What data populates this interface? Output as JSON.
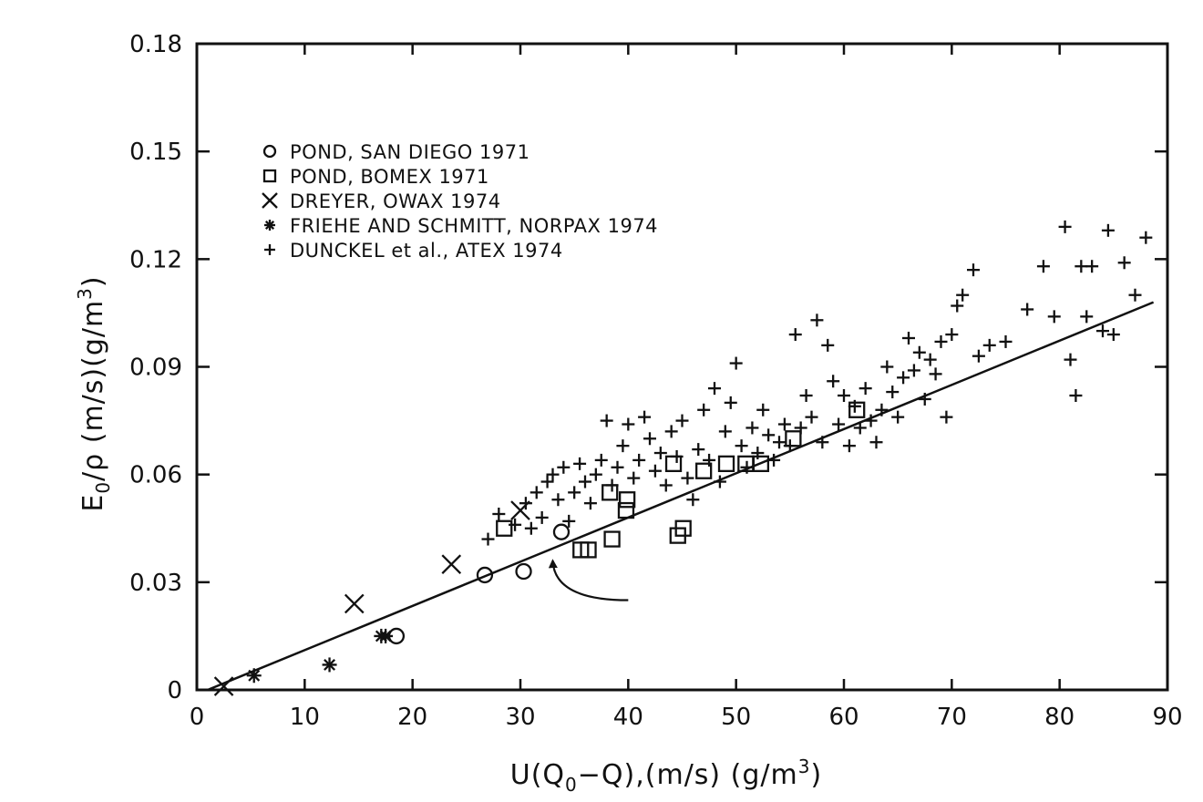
{
  "chart_data": {
    "type": "scatter",
    "x_label_parts": {
      "a": "U(Q",
      "a_sub": "0",
      "b": "−Q),(m/s) (g/m",
      "b_sup": "3",
      "c": ")"
    },
    "y_label_parts": {
      "a": "E",
      "a_sub": "0",
      "b": "/ρ (m/s)(g/m",
      "b_sup": "3",
      "c": ")"
    },
    "xlim": [
      0,
      90
    ],
    "ylim": [
      0,
      0.18
    ],
    "xticks": [
      0,
      10,
      20,
      30,
      40,
      50,
      60,
      70,
      80,
      90
    ],
    "yticks": [
      0,
      0.03,
      0.06,
      0.09,
      0.12,
      0.15,
      0.18
    ],
    "xtick_labels": [
      "0",
      "10",
      "20",
      "30",
      "40",
      "50",
      "60",
      "70",
      "80",
      "90"
    ],
    "ytick_labels": [
      "0",
      "0.03",
      "0.06",
      "0.09",
      "0.12",
      "0.15",
      "0.18"
    ],
    "grid": false,
    "legend_position": "top-left",
    "fit_line": {
      "x": [
        1,
        88.7
      ],
      "y": [
        0,
        0.108
      ]
    },
    "annotation_arrow": {
      "from": [
        40,
        0.025
      ],
      "to": [
        33,
        0.036
      ]
    },
    "series": [
      {
        "name": "POND, SAN DIEGO 1971",
        "marker": "circle",
        "points": [
          [
            18.5,
            0.015
          ],
          [
            26.7,
            0.032
          ],
          [
            30.3,
            0.033
          ],
          [
            33.8,
            0.044
          ]
        ]
      },
      {
        "name": "POND, BOMEX 1971",
        "marker": "square",
        "points": [
          [
            28.5,
            0.045
          ],
          [
            35.6,
            0.039
          ],
          [
            36.3,
            0.039
          ],
          [
            38.5,
            0.042
          ],
          [
            38.3,
            0.055
          ],
          [
            39.8,
            0.05
          ],
          [
            39.9,
            0.053
          ],
          [
            44.2,
            0.063
          ],
          [
            44.6,
            0.043
          ],
          [
            45.1,
            0.045
          ],
          [
            47,
            0.061
          ],
          [
            49.1,
            0.063
          ],
          [
            50.9,
            0.063
          ],
          [
            52.3,
            0.063
          ],
          [
            55.3,
            0.07
          ],
          [
            61.2,
            0.078
          ]
        ]
      },
      {
        "name": "DREYER, OWAX 1974",
        "marker": "x",
        "points": [
          [
            2.5,
            0.001
          ],
          [
            14.6,
            0.024
          ],
          [
            23.6,
            0.035
          ],
          [
            30,
            0.05
          ]
        ]
      },
      {
        "name": "FRIEHE AND SCHMITT, NORPAX 1974",
        "marker": "asterisk",
        "points": [
          [
            5.3,
            0.004
          ],
          [
            12.3,
            0.007
          ],
          [
            17.1,
            0.015
          ],
          [
            17.5,
            0.015
          ]
        ]
      },
      {
        "name": "DUNCKEL et al., ATEX 1974",
        "marker": "plus",
        "points": [
          [
            27,
            0.042
          ],
          [
            28,
            0.049
          ],
          [
            29.5,
            0.046
          ],
          [
            30.5,
            0.052
          ],
          [
            31,
            0.045
          ],
          [
            31.5,
            0.055
          ],
          [
            32,
            0.048
          ],
          [
            32.5,
            0.058
          ],
          [
            33,
            0.06
          ],
          [
            33.5,
            0.053
          ],
          [
            34,
            0.062
          ],
          [
            34.5,
            0.047
          ],
          [
            35,
            0.055
          ],
          [
            35.5,
            0.063
          ],
          [
            36,
            0.058
          ],
          [
            36.5,
            0.052
          ],
          [
            37,
            0.06
          ],
          [
            37.5,
            0.064
          ],
          [
            38,
            0.075
          ],
          [
            38.5,
            0.057
          ],
          [
            39,
            0.062
          ],
          [
            39.5,
            0.068
          ],
          [
            40,
            0.074
          ],
          [
            40.5,
            0.059
          ],
          [
            41,
            0.064
          ],
          [
            41.5,
            0.076
          ],
          [
            42,
            0.07
          ],
          [
            42.5,
            0.061
          ],
          [
            43,
            0.066
          ],
          [
            43.5,
            0.057
          ],
          [
            44,
            0.072
          ],
          [
            44.5,
            0.065
          ],
          [
            45,
            0.075
          ],
          [
            45.5,
            0.059
          ],
          [
            46,
            0.053
          ],
          [
            46.5,
            0.067
          ],
          [
            47,
            0.078
          ],
          [
            47.5,
            0.064
          ],
          [
            48,
            0.084
          ],
          [
            48.5,
            0.058
          ],
          [
            49,
            0.072
          ],
          [
            49.5,
            0.08
          ],
          [
            50,
            0.091
          ],
          [
            50.5,
            0.068
          ],
          [
            51,
            0.062
          ],
          [
            51.5,
            0.073
          ],
          [
            52,
            0.066
          ],
          [
            52.5,
            0.078
          ],
          [
            53,
            0.071
          ],
          [
            53.5,
            0.064
          ],
          [
            54,
            0.069
          ],
          [
            54.5,
            0.074
          ],
          [
            55,
            0.068
          ],
          [
            55.5,
            0.099
          ],
          [
            56,
            0.073
          ],
          [
            56.5,
            0.082
          ],
          [
            57,
            0.076
          ],
          [
            57.5,
            0.103
          ],
          [
            58,
            0.069
          ],
          [
            58.5,
            0.096
          ],
          [
            59,
            0.086
          ],
          [
            59.5,
            0.074
          ],
          [
            60,
            0.082
          ],
          [
            60.5,
            0.068
          ],
          [
            61,
            0.079
          ],
          [
            61.5,
            0.073
          ],
          [
            62,
            0.084
          ],
          [
            62.5,
            0.075
          ],
          [
            63,
            0.069
          ],
          [
            63.5,
            0.078
          ],
          [
            64,
            0.09
          ],
          [
            64.5,
            0.083
          ],
          [
            65,
            0.076
          ],
          [
            65.5,
            0.087
          ],
          [
            66,
            0.098
          ],
          [
            66.5,
            0.089
          ],
          [
            67,
            0.094
          ],
          [
            67.5,
            0.081
          ],
          [
            68,
            0.092
          ],
          [
            68.5,
            0.088
          ],
          [
            69,
            0.097
          ],
          [
            69.5,
            0.076
          ],
          [
            70,
            0.099
          ],
          [
            70.5,
            0.107
          ],
          [
            71,
            0.11
          ],
          [
            72,
            0.117
          ],
          [
            72.5,
            0.093
          ],
          [
            73.5,
            0.096
          ],
          [
            75,
            0.097
          ],
          [
            77,
            0.106
          ],
          [
            78.5,
            0.118
          ],
          [
            79.5,
            0.104
          ],
          [
            80.5,
            0.129
          ],
          [
            81,
            0.092
          ],
          [
            81.5,
            0.082
          ],
          [
            82,
            0.118
          ],
          [
            82.5,
            0.104
          ],
          [
            83,
            0.118
          ],
          [
            84,
            0.1
          ],
          [
            84.5,
            0.128
          ],
          [
            85,
            0.099
          ],
          [
            86,
            0.119
          ],
          [
            87,
            0.11
          ],
          [
            88,
            0.126
          ]
        ]
      }
    ]
  }
}
